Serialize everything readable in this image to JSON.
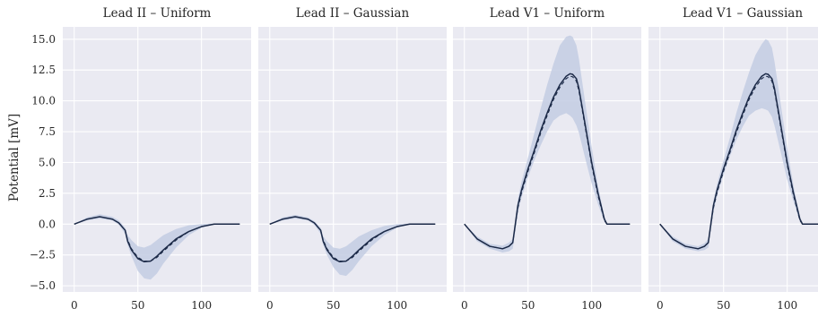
{
  "chart_data": {
    "type": "line",
    "ylabel": "Potential [mV]",
    "xlabel": "",
    "ylim": [
      -5.5,
      16.0
    ],
    "xlim": [
      -9,
      139
    ],
    "shared_y": true,
    "grid": true,
    "yticks": [
      -5.0,
      -2.5,
      0.0,
      2.5,
      5.0,
      7.5,
      10.0,
      12.5,
      15.0
    ],
    "ytick_labels": [
      "−5.0",
      "−2.5",
      "0.0",
      "2.5",
      "5.0",
      "7.5",
      "10.0",
      "12.5",
      "15.0"
    ],
    "xticks": [
      0,
      50,
      100
    ],
    "xtick_labels": [
      "0",
      "50",
      "100"
    ],
    "colors": {
      "mean": "#1c2a48",
      "reference": "#1c2a48",
      "band": "#c3cce3",
      "panel_bg": "#eaeaf2"
    },
    "panels": [
      {
        "title": "Lead II – Uniform",
        "x": [
          0,
          10,
          20,
          30,
          35,
          40,
          42,
          45,
          50,
          55,
          60,
          65,
          70,
          80,
          90,
          100,
          110,
          120,
          130
        ],
        "mean": [
          0.0,
          0.4,
          0.6,
          0.4,
          0.1,
          -0.5,
          -1.4,
          -2.1,
          -2.8,
          -3.05,
          -3.0,
          -2.6,
          -2.1,
          -1.2,
          -0.6,
          -0.2,
          0.0,
          0.0,
          0.0
        ],
        "reference": [
          0.0,
          0.4,
          0.6,
          0.4,
          0.1,
          -0.5,
          -1.3,
          -2.0,
          -2.7,
          -3.0,
          -3.0,
          -2.7,
          -2.2,
          -1.3,
          -0.6,
          -0.2,
          0.0,
          0.0,
          0.0
        ],
        "lower": [
          0.0,
          0.3,
          0.45,
          0.3,
          -0.05,
          -0.8,
          -1.7,
          -2.6,
          -3.8,
          -4.4,
          -4.5,
          -4.0,
          -3.2,
          -1.9,
          -0.9,
          -0.3,
          0.0,
          0.0,
          0.0
        ],
        "upper": [
          0.0,
          0.55,
          0.8,
          0.6,
          0.3,
          -0.3,
          -0.9,
          -1.3,
          -1.8,
          -1.9,
          -1.7,
          -1.3,
          -0.9,
          -0.4,
          -0.1,
          0.0,
          0.05,
          0.0,
          0.0
        ]
      },
      {
        "title": "Lead II – Gaussian",
        "x": [
          0,
          10,
          20,
          30,
          35,
          40,
          42,
          45,
          50,
          55,
          60,
          65,
          70,
          80,
          90,
          100,
          110,
          120,
          130
        ],
        "mean": [
          0.0,
          0.4,
          0.6,
          0.4,
          0.1,
          -0.5,
          -1.4,
          -2.1,
          -2.8,
          -3.05,
          -3.0,
          -2.6,
          -2.1,
          -1.2,
          -0.6,
          -0.2,
          0.0,
          0.0,
          0.0
        ],
        "reference": [
          0.0,
          0.4,
          0.6,
          0.4,
          0.1,
          -0.5,
          -1.3,
          -2.0,
          -2.7,
          -3.0,
          -3.0,
          -2.7,
          -2.2,
          -1.3,
          -0.6,
          -0.2,
          0.0,
          0.0,
          0.0
        ],
        "lower": [
          0.0,
          0.3,
          0.45,
          0.3,
          -0.05,
          -0.8,
          -1.7,
          -2.5,
          -3.5,
          -4.1,
          -4.2,
          -3.7,
          -3.0,
          -1.8,
          -0.9,
          -0.3,
          0.0,
          0.0,
          0.0
        ],
        "upper": [
          0.0,
          0.55,
          0.75,
          0.55,
          0.25,
          -0.3,
          -1.0,
          -1.4,
          -1.9,
          -2.0,
          -1.8,
          -1.4,
          -1.0,
          -0.5,
          -0.15,
          0.0,
          0.05,
          0.0,
          0.0
        ]
      },
      {
        "title": "Lead V1 – Uniform",
        "x": [
          0,
          10,
          20,
          30,
          35,
          38,
          42,
          45,
          50,
          55,
          60,
          65,
          70,
          75,
          80,
          83,
          85,
          88,
          90,
          95,
          100,
          105,
          110,
          112,
          120,
          130
        ],
        "mean": [
          0.0,
          -1.2,
          -1.8,
          -2.0,
          -1.8,
          -1.5,
          1.5,
          2.8,
          4.5,
          6.0,
          7.6,
          9.0,
          10.3,
          11.3,
          12.0,
          12.2,
          12.15,
          11.8,
          11.0,
          8.0,
          5.0,
          2.5,
          0.4,
          0.0,
          0.0,
          0.0
        ],
        "reference": [
          0.0,
          -1.2,
          -1.8,
          -2.0,
          -1.8,
          -1.5,
          1.3,
          2.6,
          4.3,
          5.8,
          7.4,
          8.8,
          10.1,
          11.1,
          11.8,
          12.0,
          11.95,
          11.6,
          10.8,
          7.8,
          4.8,
          2.3,
          0.3,
          0.0,
          0.0,
          0.0
        ],
        "lower": [
          0.0,
          -1.4,
          -2.0,
          -2.3,
          -2.2,
          -2.0,
          0.9,
          2.2,
          3.8,
          5.2,
          6.4,
          7.5,
          8.4,
          8.8,
          9.0,
          8.8,
          8.6,
          8.0,
          7.4,
          5.3,
          3.3,
          1.6,
          0.2,
          0.0,
          0.0,
          0.0
        ],
        "upper": [
          0.0,
          -1.0,
          -1.6,
          -1.75,
          -1.5,
          -1.2,
          2.0,
          3.5,
          5.4,
          7.4,
          9.4,
          11.3,
          13.0,
          14.5,
          15.2,
          15.3,
          15.2,
          14.5,
          13.4,
          9.8,
          6.3,
          3.1,
          0.6,
          0.0,
          0.0,
          0.0
        ]
      },
      {
        "title": "Lead V1 – Gaussian",
        "x": [
          0,
          10,
          20,
          30,
          35,
          38,
          42,
          45,
          50,
          55,
          60,
          65,
          70,
          75,
          80,
          83,
          85,
          88,
          90,
          95,
          100,
          105,
          110,
          112,
          120,
          130
        ],
        "mean": [
          0.0,
          -1.2,
          -1.8,
          -2.0,
          -1.8,
          -1.5,
          1.5,
          2.8,
          4.5,
          6.0,
          7.6,
          9.0,
          10.3,
          11.3,
          12.0,
          12.2,
          12.15,
          11.8,
          11.0,
          8.0,
          5.0,
          2.5,
          0.4,
          0.0,
          0.0,
          0.0
        ],
        "reference": [
          0.0,
          -1.2,
          -1.8,
          -2.0,
          -1.8,
          -1.5,
          1.3,
          2.6,
          4.3,
          5.8,
          7.4,
          8.8,
          10.1,
          11.1,
          11.8,
          12.0,
          11.95,
          11.6,
          10.8,
          7.8,
          4.8,
          2.3,
          0.3,
          0.0,
          0.0,
          0.0
        ],
        "lower": [
          0.0,
          -1.4,
          -2.0,
          -2.2,
          -2.1,
          -1.9,
          1.0,
          2.3,
          4.0,
          5.5,
          6.8,
          7.9,
          8.8,
          9.2,
          9.4,
          9.3,
          9.2,
          8.7,
          8.0,
          5.8,
          3.6,
          1.8,
          0.2,
          0.0,
          0.0,
          0.0
        ],
        "upper": [
          0.0,
          -1.0,
          -1.6,
          -1.8,
          -1.55,
          -1.2,
          1.9,
          3.3,
          5.2,
          7.0,
          9.0,
          10.7,
          12.3,
          13.7,
          14.6,
          15.0,
          14.9,
          14.3,
          13.2,
          9.7,
          6.2,
          3.1,
          0.6,
          0.0,
          0.0,
          0.0
        ]
      }
    ]
  }
}
